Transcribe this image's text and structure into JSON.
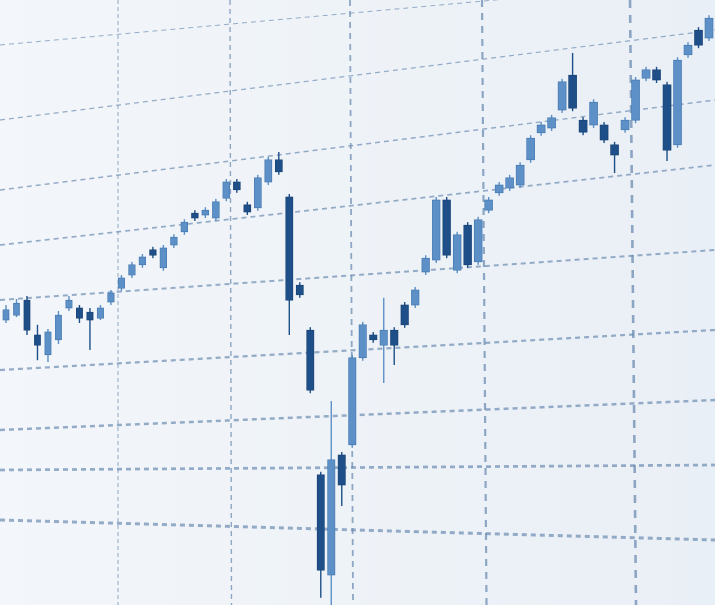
{
  "chart_data": {
    "type": "candlestick",
    "title": "",
    "xlabel": "",
    "ylabel": "",
    "grid": true,
    "colors": {
      "up": "#5d90c6",
      "down": "#1e4f88",
      "grid": "#6d8db3",
      "background": "#eef3f8"
    },
    "candle_fields": [
      "open",
      "close",
      "high",
      "low"
    ],
    "candles": [
      [
        47.5,
        49.2,
        50,
        47
      ],
      [
        48.3,
        50.3,
        51,
        48
      ],
      [
        50.8,
        45.8,
        51.5,
        45
      ],
      [
        45,
        43.3,
        46.7,
        40.8
      ],
      [
        41.7,
        45.5,
        46,
        40.5
      ],
      [
        44.2,
        48.3,
        49,
        43.5
      ],
      [
        49.5,
        50.8,
        51.5,
        49
      ],
      [
        49.5,
        47.8,
        50,
        47
      ],
      [
        48.8,
        47.5,
        49.5,
        42.5
      ],
      [
        47.8,
        49.5,
        50,
        47.5
      ],
      [
        50.5,
        52,
        52.5,
        50
      ],
      [
        52.8,
        54.5,
        55,
        52.3
      ],
      [
        55,
        56.7,
        57.2,
        54.5
      ],
      [
        56.7,
        58,
        58.5,
        56.2
      ],
      [
        59.2,
        58.3,
        59.7,
        57.8
      ],
      [
        56.2,
        59.5,
        60,
        55.7
      ],
      [
        60,
        61.3,
        61.8,
        59.5
      ],
      [
        62.2,
        63.8,
        64.3,
        61.7
      ],
      [
        65.3,
        64.5,
        65.8,
        64
      ],
      [
        65,
        65.8,
        66.3,
        64.5
      ],
      [
        64.5,
        67.2,
        67.7,
        64
      ],
      [
        67.8,
        70.5,
        71,
        67.3
      ],
      [
        70.5,
        69.2,
        71,
        68.7
      ],
      [
        66.7,
        65.5,
        67.2,
        65
      ],
      [
        66.2,
        71.2,
        71.7,
        65.7
      ],
      [
        70.5,
        74.2,
        74.7,
        70
      ],
      [
        74.2,
        72.2,
        75.5,
        71.7
      ],
      [
        68,
        50.8,
        68.5,
        45
      ],
      [
        53.3,
        51.7,
        53.8,
        51.2
      ],
      [
        45.8,
        35.8,
        46.3,
        35.3
      ],
      [
        21.7,
        5.8,
        22.2,
        1.2
      ],
      [
        5,
        24.2,
        34,
        0
      ],
      [
        25,
        20,
        25.5,
        16.5
      ],
      [
        26.7,
        41.2,
        41.7,
        26.2
      ],
      [
        41.2,
        46.7,
        47.2,
        40.7
      ],
      [
        45,
        44.2,
        45.5,
        43.7
      ],
      [
        43.3,
        45.8,
        51.2,
        37
      ],
      [
        45.8,
        43.3,
        46.3,
        40
      ],
      [
        50,
        46.7,
        50.5,
        46.2
      ],
      [
        50,
        52.5,
        53,
        49.5
      ],
      [
        55.5,
        57.8,
        58.3,
        55
      ],
      [
        57.5,
        67.5,
        68,
        57
      ],
      [
        67.5,
        58.3,
        68,
        57.8
      ],
      [
        55.8,
        61.7,
        62.2,
        55.3
      ],
      [
        63.3,
        56.7,
        63.8,
        56.2
      ],
      [
        57.2,
        64.2,
        64.7,
        56.7
      ],
      [
        65.8,
        67.5,
        68,
        65.3
      ],
      [
        68.7,
        70,
        70.5,
        68.2
      ],
      [
        69.5,
        71.2,
        71.7,
        69
      ],
      [
        70,
        73.3,
        73.8,
        69.5
      ],
      [
        74.2,
        77.8,
        78.3,
        73.7
      ],
      [
        78.7,
        80,
        80.5,
        78.2
      ],
      [
        79.5,
        81.2,
        81.7,
        79
      ],
      [
        82.5,
        87.2,
        87.7,
        82
      ],
      [
        88.3,
        82.8,
        92,
        82.3
      ],
      [
        80.8,
        78.8,
        81.3,
        78.3
      ],
      [
        80,
        83.8,
        84.3,
        79.5
      ],
      [
        80,
        77.5,
        80.5,
        77
      ],
      [
        76.7,
        75,
        77.2,
        72
      ],
      [
        79.2,
        80.8,
        81.3,
        78.7
      ],
      [
        80.8,
        87.5,
        88,
        80.3
      ],
      [
        87.8,
        89.2,
        89.7,
        87.3
      ],
      [
        89.2,
        87.5,
        89.7,
        87
      ],
      [
        86.7,
        75.8,
        87.2,
        74
      ],
      [
        76.7,
        90.8,
        91.3,
        76.2
      ],
      [
        91.7,
        93.3,
        93.8,
        91.2
      ],
      [
        95.8,
        93.3,
        96.3,
        92.8
      ],
      [
        94.5,
        97.8,
        98.3,
        94
      ]
    ]
  }
}
